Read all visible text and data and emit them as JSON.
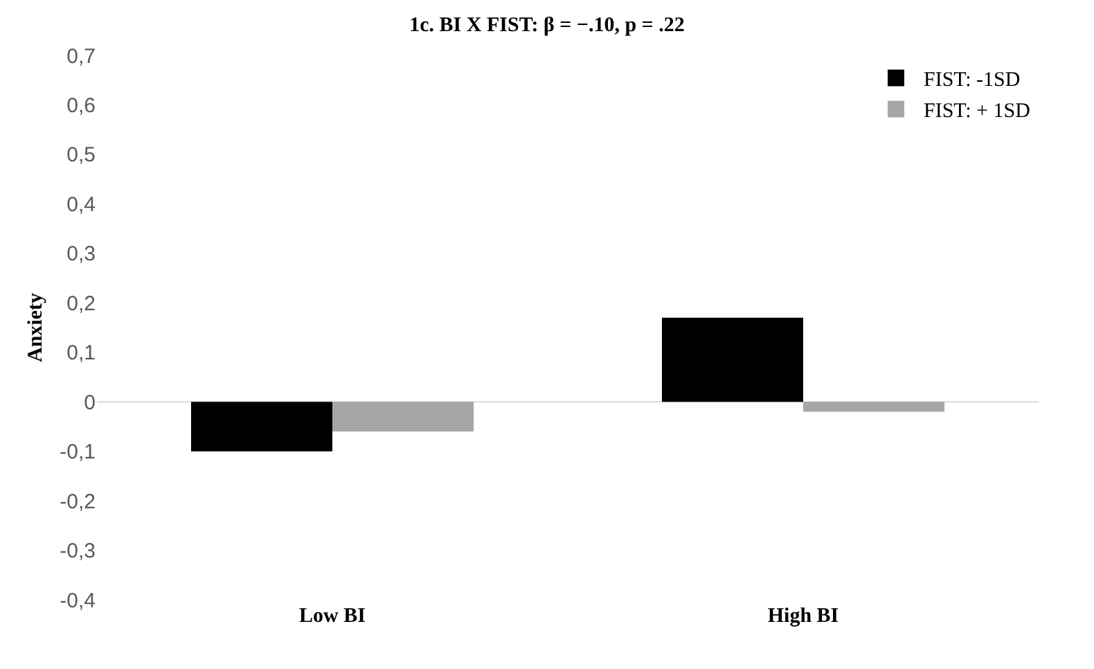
{
  "chart_data": {
    "type": "bar",
    "title": "1c. BI X FIST: β = −.10, p = .22",
    "ylabel": "Anxiety",
    "categories": [
      "Low BI",
      "High BI"
    ],
    "series": [
      {
        "name": "FIST: -1SD",
        "color": "#000000",
        "values": [
          -0.1,
          0.17
        ]
      },
      {
        "name": "FIST: + 1SD",
        "color": "#a6a6a6",
        "values": [
          -0.06,
          -0.02
        ]
      }
    ],
    "ylim": [
      -0.4,
      0.7
    ],
    "yticks": [
      {
        "value": -0.4,
        "label": "-0,4"
      },
      {
        "value": -0.3,
        "label": "-0,3"
      },
      {
        "value": -0.2,
        "label": "-0,2"
      },
      {
        "value": -0.1,
        "label": "-0,1"
      },
      0,
      {
        "value": 0.1,
        "label": "0,1"
      },
      {
        "value": 0.2,
        "label": "0,2"
      },
      {
        "value": 0.3,
        "label": "0,3"
      },
      {
        "value": 0.4,
        "label": "0,4"
      },
      {
        "value": 0.5,
        "label": "0,5"
      },
      {
        "value": 0.6,
        "label": "0,6"
      },
      {
        "value": 0.7,
        "label": "0,7"
      }
    ],
    "ref_lines": [
      {
        "axis": "y",
        "value": 0,
        "color": "#d9d9d9"
      }
    ],
    "grid": false,
    "legend": "top right"
  }
}
